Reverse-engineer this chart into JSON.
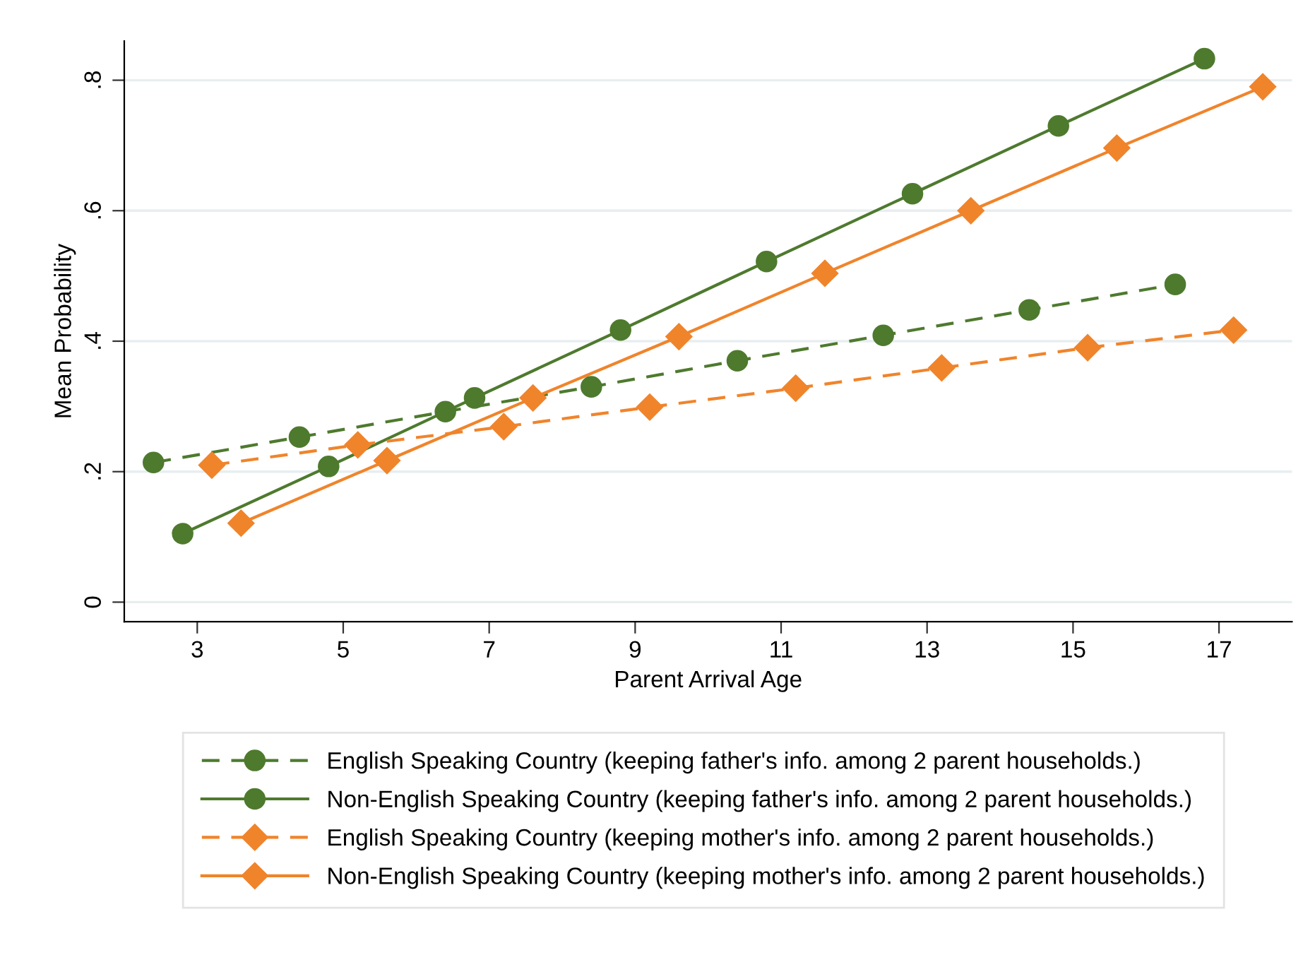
{
  "chart_data": {
    "type": "line",
    "xlabel": "Parent Arrival Age",
    "ylabel": "Mean Probability",
    "xlim": [
      2,
      18
    ],
    "ylim": [
      -0.03,
      0.86
    ],
    "xticks": [
      3,
      5,
      7,
      9,
      11,
      13,
      15,
      17
    ],
    "yticks": [
      {
        "value": 0,
        "label": "0"
      },
      {
        "value": 0.2,
        "label": ".2"
      },
      {
        "value": 0.4,
        "label": ".4"
      },
      {
        "value": 0.6,
        "label": ".6"
      },
      {
        "value": 0.8,
        "label": ".8"
      }
    ],
    "grid": "y",
    "legend": "bottom",
    "series": [
      {
        "name": "English Speaking Country (keeping father's info. among 2 parent households.)",
        "color": "#4e7a2e",
        "marker": "circle",
        "line_style": "dashed",
        "x": [
          2.4,
          4.4,
          6.4,
          8.4,
          10.4,
          12.4,
          14.4,
          16.4
        ],
        "values": [
          0.214,
          0.253,
          0.292,
          0.33,
          0.37,
          0.409,
          0.448,
          0.487
        ]
      },
      {
        "name": "Non-English Speaking Country (keeping father's info. among 2 parent households.)",
        "color": "#4e7a2e",
        "marker": "circle",
        "line_style": "solid",
        "x": [
          2.8,
          4.8,
          6.8,
          8.8,
          10.8,
          12.8,
          14.8,
          16.8
        ],
        "values": [
          0.105,
          0.208,
          0.313,
          0.417,
          0.522,
          0.626,
          0.73,
          0.833
        ]
      },
      {
        "name": "English Speaking Country (keeping mother's info. among 2 parent households.)",
        "color": "#f0842b",
        "marker": "diamond",
        "line_style": "dashed",
        "x": [
          3.2,
          5.2,
          7.2,
          9.2,
          11.2,
          13.2,
          15.2,
          17.2
        ],
        "values": [
          0.21,
          0.241,
          0.269,
          0.299,
          0.328,
          0.359,
          0.39,
          0.417
        ]
      },
      {
        "name": "Non-English Speaking Country (keeping mother's info. among 2 parent households.)",
        "color": "#f0842b",
        "marker": "diamond",
        "line_style": "solid",
        "x": [
          3.6,
          5.6,
          7.6,
          9.6,
          11.6,
          13.6,
          15.6,
          17.6
        ],
        "values": [
          0.121,
          0.217,
          0.313,
          0.407,
          0.504,
          0.6,
          0.696,
          0.79
        ]
      }
    ]
  }
}
